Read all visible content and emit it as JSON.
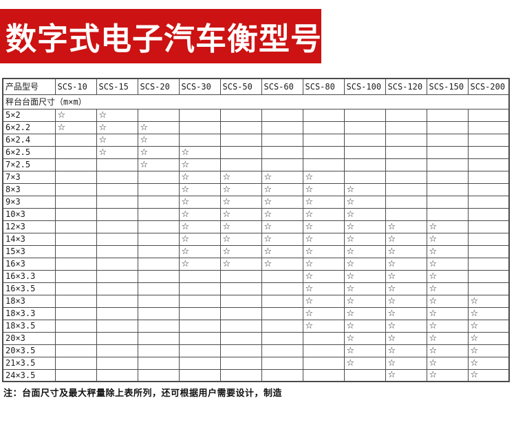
{
  "banner": {
    "title": "数字式电子汽车衡型号",
    "bg_color": "#cc1212",
    "text_color": "#ffffff"
  },
  "table": {
    "model_header": "产品型号",
    "models": [
      "SCS-10",
      "SCS-15",
      "SCS-20",
      "SCS-30",
      "SCS-50",
      "SCS-60",
      "SCS-80",
      "SCS-100",
      "SCS-120",
      "SCS-150",
      "SCS-200"
    ],
    "subheader": "秤台台面尺寸（m×m）",
    "star_symbol": "☆",
    "rows": [
      {
        "size": "5×2",
        "stars": [
          "SCS-10",
          "SCS-15"
        ]
      },
      {
        "size": "6×2.2",
        "stars": [
          "SCS-10",
          "SCS-15",
          "SCS-20"
        ]
      },
      {
        "size": "6×2.4",
        "stars": [
          "SCS-15",
          "SCS-20"
        ]
      },
      {
        "size": "6×2.5",
        "stars": [
          "SCS-15",
          "SCS-20",
          "SCS-30"
        ]
      },
      {
        "size": "7×2.5",
        "stars": [
          "SCS-20",
          "SCS-30"
        ]
      },
      {
        "size": "7×3",
        "stars": [
          "SCS-30",
          "SCS-50",
          "SCS-60",
          "SCS-80"
        ]
      },
      {
        "size": "8×3",
        "stars": [
          "SCS-30",
          "SCS-50",
          "SCS-60",
          "SCS-80",
          "SCS-100"
        ]
      },
      {
        "size": "9×3",
        "stars": [
          "SCS-30",
          "SCS-50",
          "SCS-60",
          "SCS-80",
          "SCS-100"
        ]
      },
      {
        "size": "10×3",
        "stars": [
          "SCS-30",
          "SCS-50",
          "SCS-60",
          "SCS-80",
          "SCS-100"
        ]
      },
      {
        "size": "12×3",
        "stars": [
          "SCS-30",
          "SCS-50",
          "SCS-60",
          "SCS-80",
          "SCS-100",
          "SCS-120",
          "SCS-150"
        ]
      },
      {
        "size": "14×3",
        "stars": [
          "SCS-30",
          "SCS-50",
          "SCS-60",
          "SCS-80",
          "SCS-100",
          "SCS-120",
          "SCS-150"
        ]
      },
      {
        "size": "15×3",
        "stars": [
          "SCS-30",
          "SCS-50",
          "SCS-60",
          "SCS-80",
          "SCS-100",
          "SCS-120",
          "SCS-150"
        ]
      },
      {
        "size": "16×3",
        "stars": [
          "SCS-30",
          "SCS-50",
          "SCS-60",
          "SCS-80",
          "SCS-100",
          "SCS-120",
          "SCS-150"
        ]
      },
      {
        "size": "16×3.3",
        "stars": [
          "SCS-80",
          "SCS-100",
          "SCS-120",
          "SCS-150"
        ]
      },
      {
        "size": "16×3.5",
        "stars": [
          "SCS-80",
          "SCS-100",
          "SCS-120",
          "SCS-150"
        ]
      },
      {
        "size": "18×3",
        "stars": [
          "SCS-80",
          "SCS-100",
          "SCS-120",
          "SCS-150",
          "SCS-200"
        ]
      },
      {
        "size": "18×3.3",
        "stars": [
          "SCS-80",
          "SCS-100",
          "SCS-120",
          "SCS-150",
          "SCS-200"
        ]
      },
      {
        "size": "18×3.5",
        "stars": [
          "SCS-80",
          "SCS-100",
          "SCS-120",
          "SCS-150",
          "SCS-200"
        ]
      },
      {
        "size": "20×3",
        "stars": [
          "SCS-100",
          "SCS-120",
          "SCS-150",
          "SCS-200"
        ]
      },
      {
        "size": "20×3.5",
        "stars": [
          "SCS-100",
          "SCS-120",
          "SCS-150",
          "SCS-200"
        ]
      },
      {
        "size": "21×3.5",
        "stars": [
          "SCS-100",
          "SCS-120",
          "SCS-150",
          "SCS-200"
        ]
      },
      {
        "size": "24×3.5",
        "stars": [
          "SCS-120",
          "SCS-150",
          "SCS-200"
        ]
      }
    ]
  },
  "note": "注：台面尺寸及最大秤量除上表所列，还可根据用户需要设计，制造"
}
